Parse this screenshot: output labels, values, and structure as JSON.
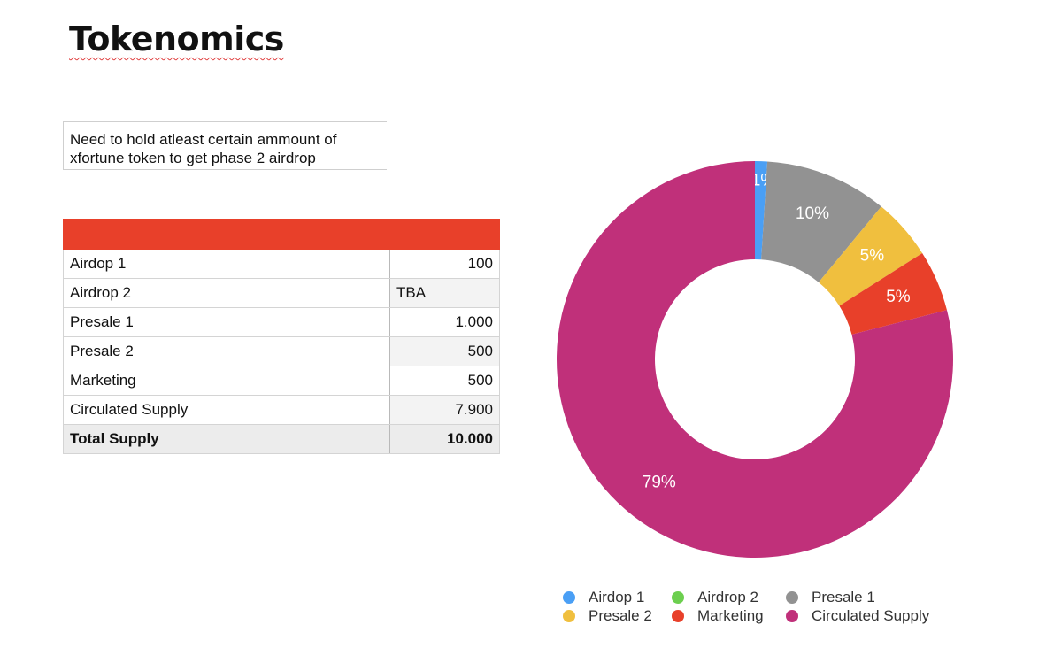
{
  "page": {
    "title": "Tokenomics",
    "note": "Need to hold atleast certain ammount of xfortune token to get phase 2 airdrop"
  },
  "table": {
    "header_color": "#e8402a",
    "rows": [
      {
        "label": "Airdop 1",
        "value": "100",
        "align": "right"
      },
      {
        "label": "Airdrop 2",
        "value": "TBA",
        "align": "left"
      },
      {
        "label": "Presale 1",
        "value": "1.000",
        "align": "right"
      },
      {
        "label": "Presale 2",
        "value": "500",
        "align": "right"
      },
      {
        "label": "Marketing",
        "value": "500",
        "align": "right"
      },
      {
        "label": "Circulated Supply",
        "value": "7.900",
        "align": "right"
      }
    ],
    "total": {
      "label": "Total Supply",
      "value": "10.000"
    }
  },
  "chart_data": {
    "type": "pie",
    "style": "donut",
    "categories": [
      "Airdop 1",
      "Airdrop 2",
      "Presale 1",
      "Presale 2",
      "Marketing",
      "Circulated Supply"
    ],
    "values": [
      100,
      0,
      1000,
      500,
      500,
      7900
    ],
    "labels": [
      "1%",
      "",
      "10%",
      "5%",
      "5%",
      "79%"
    ],
    "colors": [
      "#4a9ff5",
      "#6ccf4f",
      "#929292",
      "#f0bf3e",
      "#e8402a",
      "#c0307a"
    ],
    "legend": "bottom"
  }
}
